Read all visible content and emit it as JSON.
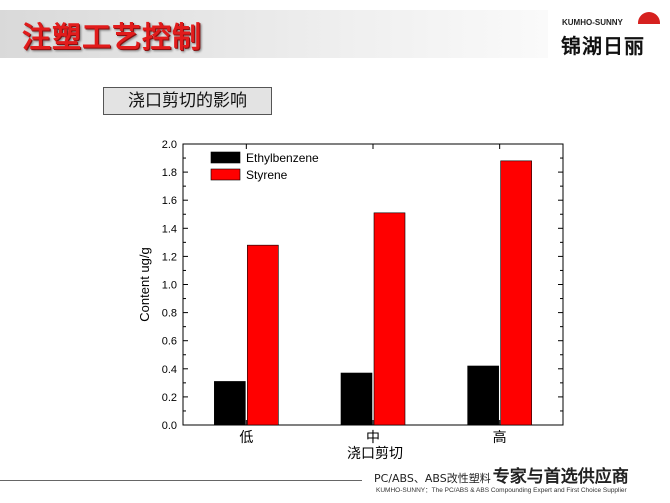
{
  "header": {
    "title": "注塑工艺控制",
    "logo_en": "KUMHO-SUNNY",
    "logo_zh": "锦湖日丽"
  },
  "section_label": "浇口剪切的影响",
  "chart_data": {
    "type": "bar",
    "categories": [
      "低",
      "中",
      "高"
    ],
    "series": [
      {
        "name": "Ethylbenzene",
        "values": [
          0.31,
          0.37,
          0.42
        ],
        "color": "#000000"
      },
      {
        "name": "Styrene",
        "values": [
          1.28,
          1.51,
          1.88
        ],
        "color": "#ff0000"
      }
    ],
    "xlabel": "浇口剪切",
    "ylabel": "Content   ug/g",
    "ylim": [
      0.0,
      2.0
    ],
    "yticks": [
      "0.0",
      "0.2",
      "0.4",
      "0.6",
      "0.8",
      "1.0",
      "1.2",
      "1.4",
      "1.6",
      "1.8",
      "2.0"
    ],
    "legend_position": "top-left",
    "grid": false
  },
  "footer": {
    "tagline_small": "PC/ABS、ABS改性塑料",
    "tagline_big": "专家与首选供应商",
    "subline": "KUMHO-SUNNY：The PC/ABS & ABS Compounding Expert and First Choice Supplier"
  }
}
